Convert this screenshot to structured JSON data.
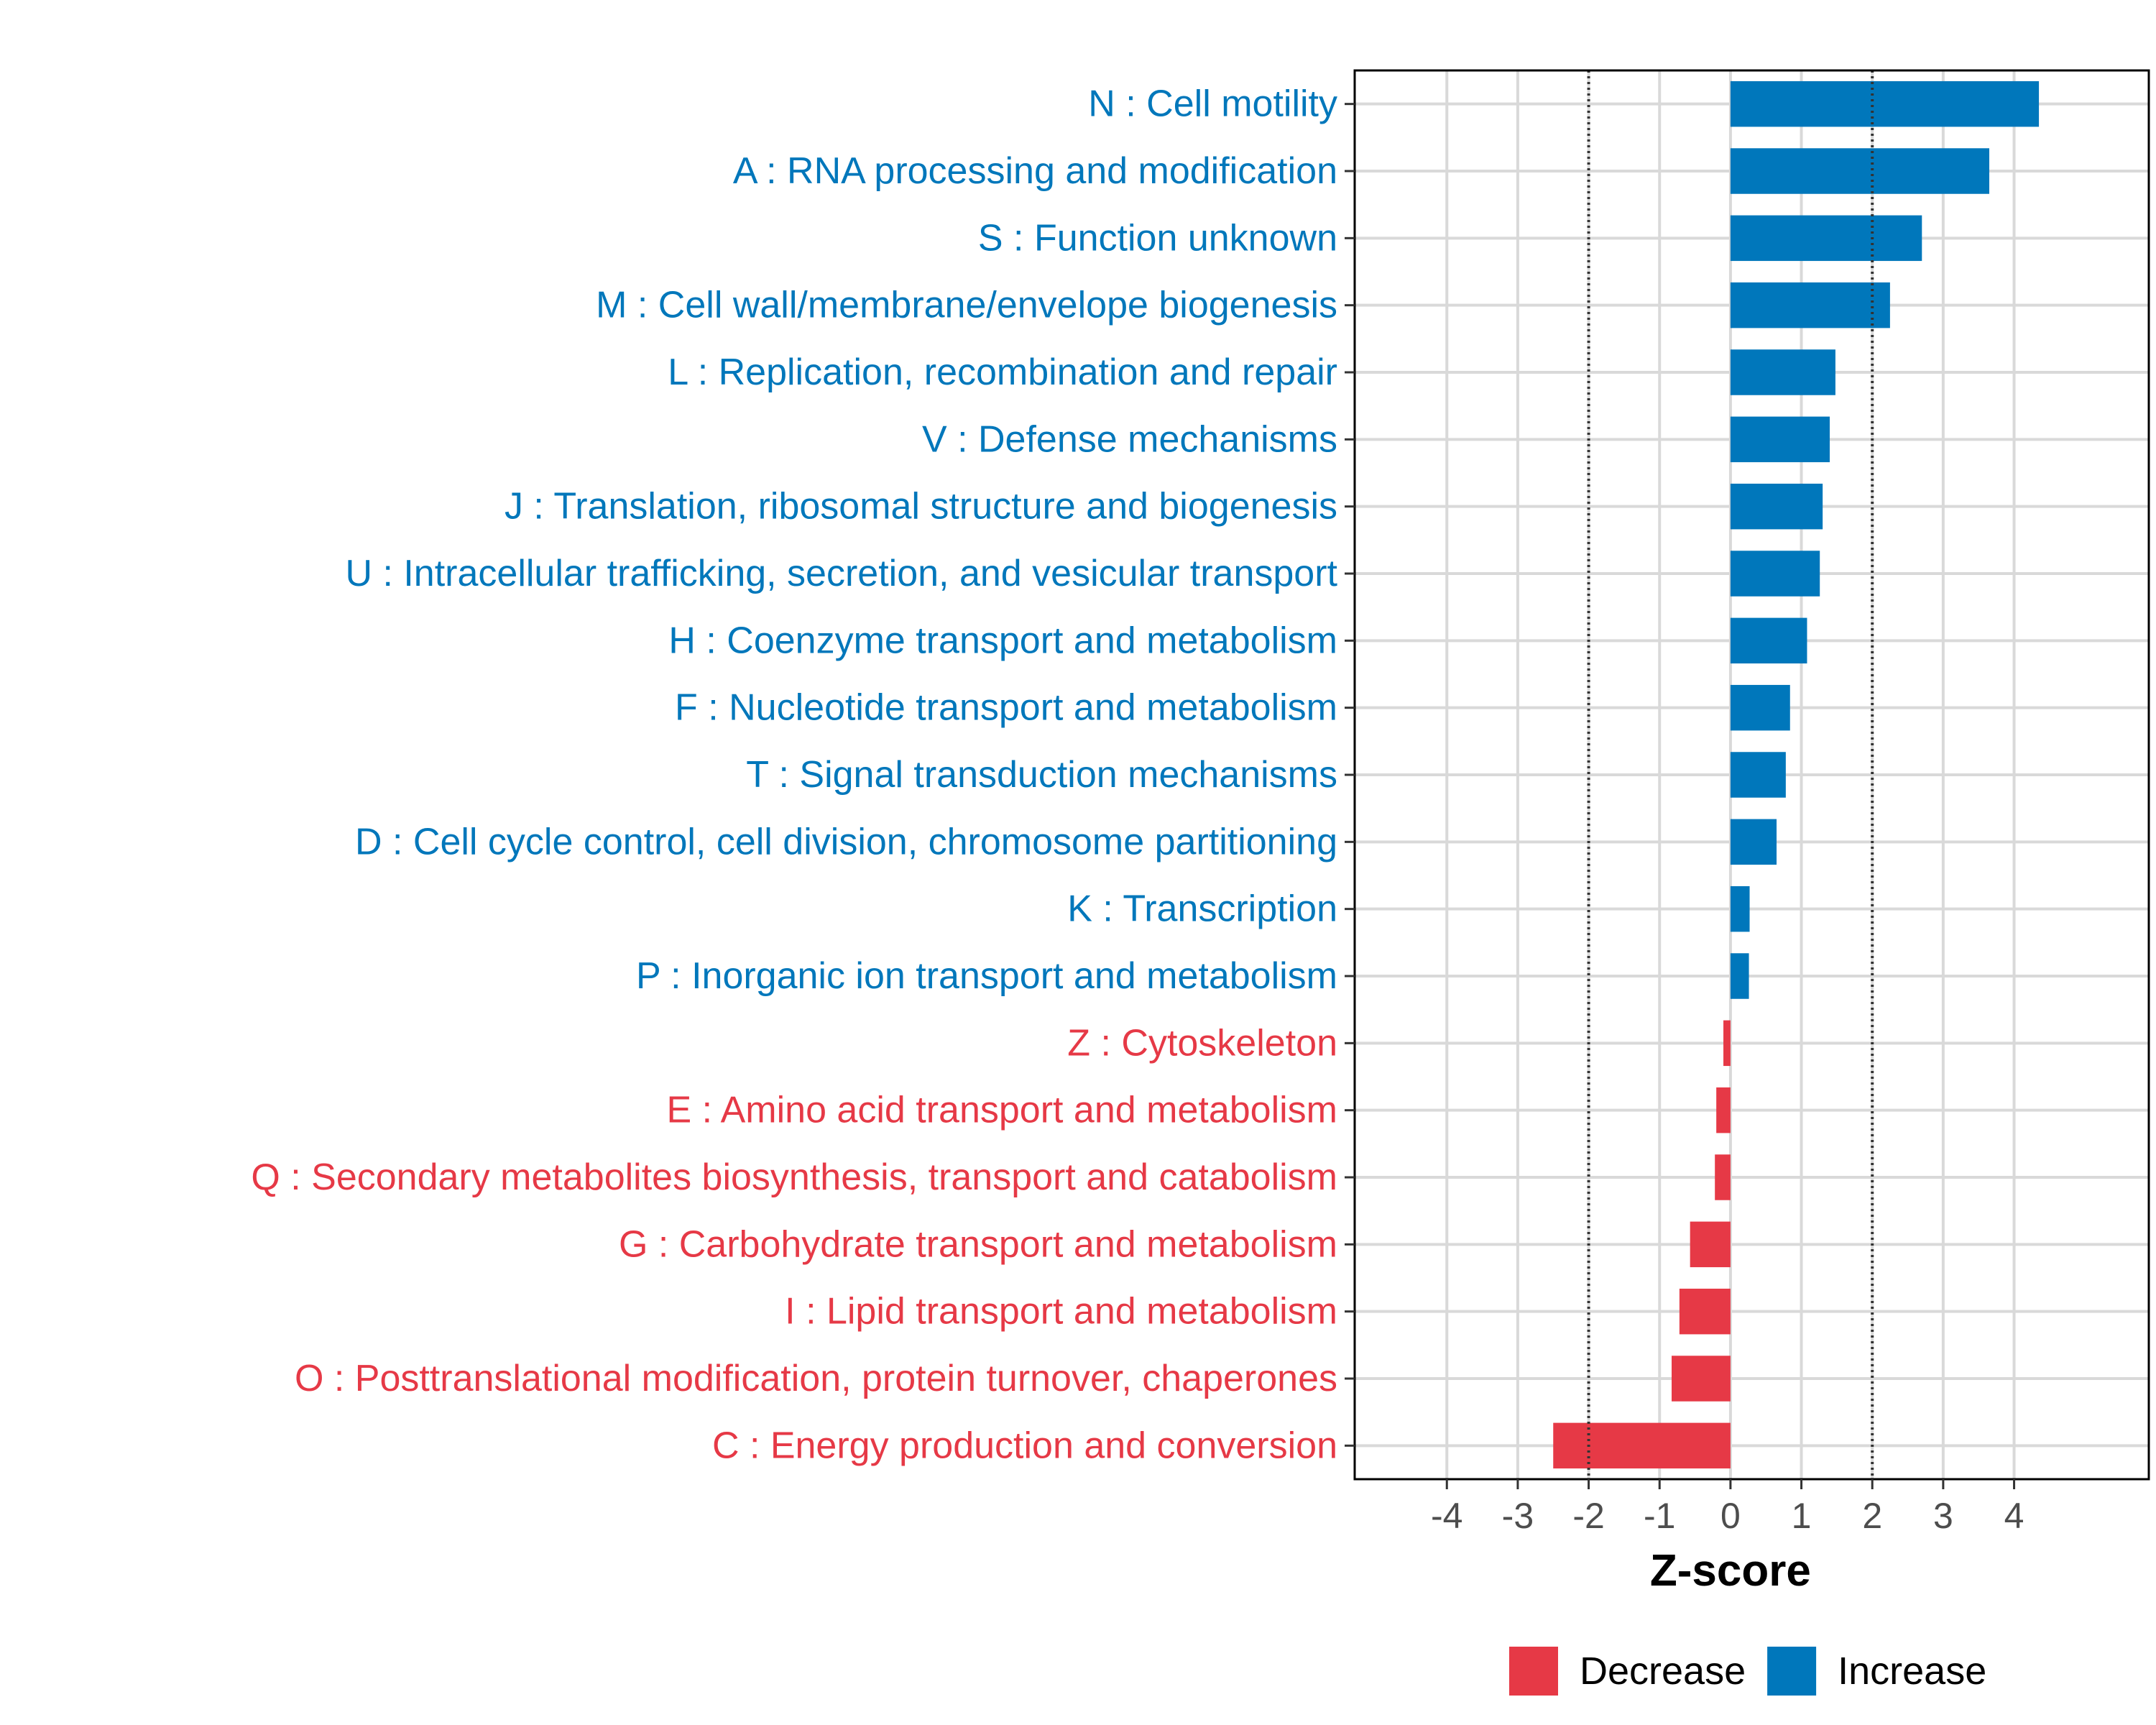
{
  "chart_data": {
    "type": "bar",
    "orientation": "horizontal",
    "title": "",
    "xlabel": "Z-score",
    "ylabel": "",
    "xlim": [
      -5.3,
      5.9
    ],
    "xticks": [
      -4,
      -3,
      -2,
      -1,
      0,
      1,
      2,
      3,
      4
    ],
    "threshold_lines": [
      -2,
      2
    ],
    "grid": true,
    "legend_position": "bottom",
    "colors": {
      "Increase": "#0077BB",
      "Decrease": "#E63946",
      "threshold": "#333333",
      "grid": "#d9d9d9"
    },
    "legend": [
      {
        "label": "Decrease",
        "color": "#E63946"
      },
      {
        "label": "Increase",
        "color": "#0077BB"
      }
    ],
    "bars": [
      {
        "label": "N : Cell motility",
        "value": 4.35,
        "direction": "Increase"
      },
      {
        "label": "A : RNA processing and modification",
        "value": 3.65,
        "direction": "Increase"
      },
      {
        "label": "S : Function unknown",
        "value": 2.7,
        "direction": "Increase"
      },
      {
        "label": "M : Cell wall/membrane/envelope biogenesis",
        "value": 2.25,
        "direction": "Increase"
      },
      {
        "label": "L : Replication, recombination and repair",
        "value": 1.48,
        "direction": "Increase"
      },
      {
        "label": "V : Defense mechanisms",
        "value": 1.4,
        "direction": "Increase"
      },
      {
        "label": "J : Translation, ribosomal structure and biogenesis",
        "value": 1.3,
        "direction": "Increase"
      },
      {
        "label": "U : Intracellular trafficking, secretion, and vesicular transport",
        "value": 1.26,
        "direction": "Increase"
      },
      {
        "label": "H : Coenzyme transport and metabolism",
        "value": 1.08,
        "direction": "Increase"
      },
      {
        "label": "F : Nucleotide transport and metabolism",
        "value": 0.84,
        "direction": "Increase"
      },
      {
        "label": "T : Signal transduction mechanisms",
        "value": 0.78,
        "direction": "Increase"
      },
      {
        "label": "D : Cell cycle control, cell division, chromosome partitioning",
        "value": 0.65,
        "direction": "Increase"
      },
      {
        "label": "K : Transcription",
        "value": 0.27,
        "direction": "Increase"
      },
      {
        "label": "P : Inorganic ion transport and metabolism",
        "value": 0.26,
        "direction": "Increase"
      },
      {
        "label": "Z : Cytoskeleton",
        "value": -0.1,
        "direction": "Decrease"
      },
      {
        "label": "E : Amino acid transport and metabolism",
        "value": -0.2,
        "direction": "Decrease"
      },
      {
        "label": "Q : Secondary metabolites biosynthesis, transport and catabolism",
        "value": -0.22,
        "direction": "Decrease"
      },
      {
        "label": "G : Carbohydrate transport and metabolism",
        "value": -0.57,
        "direction": "Decrease"
      },
      {
        "label": "I : Lipid transport and metabolism",
        "value": -0.72,
        "direction": "Decrease"
      },
      {
        "label": "O : Posttranslational modification, protein turnover, chaperones",
        "value": -0.83,
        "direction": "Decrease"
      },
      {
        "label": "C : Energy production and conversion",
        "value": -2.5,
        "direction": "Decrease"
      }
    ]
  }
}
